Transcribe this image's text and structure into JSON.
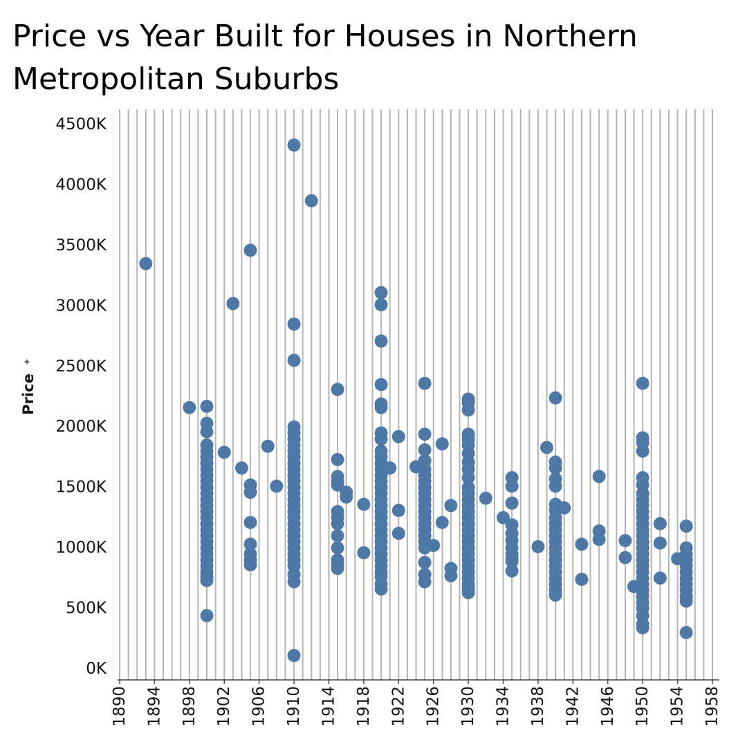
{
  "chart_data": {
    "type": "scatter",
    "title": "Price vs Year Built for Houses in Northern Metropolitan Suburbs",
    "xlabel": "",
    "ylabel": "Price",
    "xlim": [
      1890,
      1958
    ],
    "ylim": [
      0,
      4500000
    ],
    "x_ticks": [
      "1890",
      "1894",
      "1898",
      "1902",
      "1906",
      "1910",
      "1914",
      "1918",
      "1922",
      "1926",
      "1930",
      "1934",
      "1938",
      "1942",
      "1946",
      "1950",
      "1954",
      "1958"
    ],
    "y_ticks": [
      "0K",
      "500K",
      "1000K",
      "1500K",
      "2000K",
      "2500K",
      "3000K",
      "3500K",
      "4000K",
      "4500K"
    ],
    "grid": "vertical lines at each year",
    "point_color": "#4e79a7",
    "points": [
      [
        1893,
        3350000
      ],
      [
        1898,
        2160000
      ],
      [
        1900,
        2170000
      ],
      [
        1900,
        2030000
      ],
      [
        1900,
        1960000
      ],
      [
        1900,
        1850000
      ],
      [
        1900,
        1800000
      ],
      [
        1900,
        1750000
      ],
      [
        1900,
        1700000
      ],
      [
        1900,
        1650000
      ],
      [
        1900,
        1600000
      ],
      [
        1900,
        1550000
      ],
      [
        1900,
        1500000
      ],
      [
        1900,
        1450000
      ],
      [
        1900,
        1400000
      ],
      [
        1900,
        1350000
      ],
      [
        1900,
        1300000
      ],
      [
        1900,
        1250000
      ],
      [
        1900,
        1200000
      ],
      [
        1900,
        1150000
      ],
      [
        1900,
        1100000
      ],
      [
        1900,
        1050000
      ],
      [
        1900,
        1000000
      ],
      [
        1900,
        950000
      ],
      [
        1900,
        900000
      ],
      [
        1900,
        850000
      ],
      [
        1900,
        800000
      ],
      [
        1900,
        760000
      ],
      [
        1900,
        730000
      ],
      [
        1900,
        440000
      ],
      [
        1902,
        1790000
      ],
      [
        1903,
        3020000
      ],
      [
        1904,
        1660000
      ],
      [
        1905,
        3460000
      ],
      [
        1905,
        1520000
      ],
      [
        1905,
        1460000
      ],
      [
        1905,
        1210000
      ],
      [
        1905,
        1030000
      ],
      [
        1905,
        950000
      ],
      [
        1905,
        900000
      ],
      [
        1905,
        860000
      ],
      [
        1907,
        1840000
      ],
      [
        1908,
        1510000
      ],
      [
        1910,
        4330000
      ],
      [
        1910,
        2850000
      ],
      [
        1910,
        2550000
      ],
      [
        1910,
        2000000
      ],
      [
        1910,
        1950000
      ],
      [
        1910,
        1900000
      ],
      [
        1910,
        1850000
      ],
      [
        1910,
        1800000
      ],
      [
        1910,
        1750000
      ],
      [
        1910,
        1700000
      ],
      [
        1910,
        1650000
      ],
      [
        1910,
        1600000
      ],
      [
        1910,
        1550000
      ],
      [
        1910,
        1500000
      ],
      [
        1910,
        1450000
      ],
      [
        1910,
        1400000
      ],
      [
        1910,
        1350000
      ],
      [
        1910,
        1300000
      ],
      [
        1910,
        1250000
      ],
      [
        1910,
        1200000
      ],
      [
        1910,
        1150000
      ],
      [
        1910,
        1100000
      ],
      [
        1910,
        1050000
      ],
      [
        1910,
        1000000
      ],
      [
        1910,
        950000
      ],
      [
        1910,
        900000
      ],
      [
        1910,
        850000
      ],
      [
        1910,
        780000
      ],
      [
        1910,
        720000
      ],
      [
        1910,
        110000
      ],
      [
        1912,
        3870000
      ],
      [
        1915,
        2310000
      ],
      [
        1915,
        1730000
      ],
      [
        1915,
        1590000
      ],
      [
        1915,
        1550000
      ],
      [
        1915,
        1520000
      ],
      [
        1915,
        1300000
      ],
      [
        1915,
        1250000
      ],
      [
        1915,
        1200000
      ],
      [
        1915,
        1100000
      ],
      [
        1915,
        1000000
      ],
      [
        1915,
        900000
      ],
      [
        1915,
        870000
      ],
      [
        1915,
        830000
      ],
      [
        1916,
        1460000
      ],
      [
        1916,
        1420000
      ],
      [
        1918,
        1360000
      ],
      [
        1918,
        960000
      ],
      [
        1920,
        3110000
      ],
      [
        1920,
        3010000
      ],
      [
        1920,
        2710000
      ],
      [
        1920,
        2350000
      ],
      [
        1920,
        2190000
      ],
      [
        1920,
        2160000
      ],
      [
        1920,
        1950000
      ],
      [
        1920,
        1900000
      ],
      [
        1920,
        1800000
      ],
      [
        1920,
        1750000
      ],
      [
        1920,
        1700000
      ],
      [
        1920,
        1650000
      ],
      [
        1920,
        1600000
      ],
      [
        1920,
        1550000
      ],
      [
        1920,
        1500000
      ],
      [
        1920,
        1450000
      ],
      [
        1920,
        1400000
      ],
      [
        1920,
        1350000
      ],
      [
        1920,
        1300000
      ],
      [
        1920,
        1250000
      ],
      [
        1920,
        1200000
      ],
      [
        1920,
        1150000
      ],
      [
        1920,
        1100000
      ],
      [
        1920,
        1050000
      ],
      [
        1920,
        1000000
      ],
      [
        1920,
        950000
      ],
      [
        1920,
        900000
      ],
      [
        1920,
        850000
      ],
      [
        1920,
        800000
      ],
      [
        1920,
        760000
      ],
      [
        1920,
        700000
      ],
      [
        1920,
        660000
      ],
      [
        1921,
        1660000
      ],
      [
        1922,
        1920000
      ],
      [
        1922,
        1310000
      ],
      [
        1922,
        1120000
      ],
      [
        1924,
        1670000
      ],
      [
        1925,
        2360000
      ],
      [
        1925,
        1940000
      ],
      [
        1925,
        1810000
      ],
      [
        1925,
        1720000
      ],
      [
        1925,
        1650000
      ],
      [
        1925,
        1600000
      ],
      [
        1925,
        1550000
      ],
      [
        1925,
        1500000
      ],
      [
        1925,
        1450000
      ],
      [
        1925,
        1400000
      ],
      [
        1925,
        1350000
      ],
      [
        1925,
        1300000
      ],
      [
        1925,
        1250000
      ],
      [
        1925,
        1200000
      ],
      [
        1925,
        1150000
      ],
      [
        1925,
        1100000
      ],
      [
        1925,
        1050000
      ],
      [
        1925,
        1000000
      ],
      [
        1925,
        880000
      ],
      [
        1925,
        780000
      ],
      [
        1925,
        720000
      ],
      [
        1926,
        1020000
      ],
      [
        1927,
        1860000
      ],
      [
        1927,
        1210000
      ],
      [
        1928,
        1350000
      ],
      [
        1928,
        830000
      ],
      [
        1928,
        770000
      ],
      [
        1930,
        2230000
      ],
      [
        1930,
        2200000
      ],
      [
        1930,
        2140000
      ],
      [
        1930,
        1940000
      ],
      [
        1930,
        1900000
      ],
      [
        1930,
        1850000
      ],
      [
        1930,
        1780000
      ],
      [
        1930,
        1710000
      ],
      [
        1930,
        1650000
      ],
      [
        1930,
        1580000
      ],
      [
        1930,
        1500000
      ],
      [
        1930,
        1450000
      ],
      [
        1930,
        1400000
      ],
      [
        1930,
        1350000
      ],
      [
        1930,
        1300000
      ],
      [
        1930,
        1250000
      ],
      [
        1930,
        1200000
      ],
      [
        1930,
        1150000
      ],
      [
        1930,
        1100000
      ],
      [
        1930,
        1050000
      ],
      [
        1930,
        1000000
      ],
      [
        1930,
        950000
      ],
      [
        1930,
        900000
      ],
      [
        1930,
        850000
      ],
      [
        1930,
        800000
      ],
      [
        1930,
        750000
      ],
      [
        1930,
        700000
      ],
      [
        1930,
        660000
      ],
      [
        1930,
        630000
      ],
      [
        1932,
        1410000
      ],
      [
        1934,
        1250000
      ],
      [
        1935,
        1580000
      ],
      [
        1935,
        1510000
      ],
      [
        1935,
        1370000
      ],
      [
        1935,
        1190000
      ],
      [
        1935,
        1120000
      ],
      [
        1935,
        1060000
      ],
      [
        1935,
        1000000
      ],
      [
        1935,
        950000
      ],
      [
        1935,
        910000
      ],
      [
        1935,
        890000
      ],
      [
        1935,
        810000
      ],
      [
        1938,
        1010000
      ],
      [
        1939,
        1830000
      ],
      [
        1940,
        2240000
      ],
      [
        1940,
        1710000
      ],
      [
        1940,
        1660000
      ],
      [
        1940,
        1570000
      ],
      [
        1940,
        1510000
      ],
      [
        1940,
        1360000
      ],
      [
        1940,
        1310000
      ],
      [
        1940,
        1250000
      ],
      [
        1940,
        1200000
      ],
      [
        1940,
        1150000
      ],
      [
        1940,
        1100000
      ],
      [
        1940,
        1050000
      ],
      [
        1940,
        1000000
      ],
      [
        1940,
        950000
      ],
      [
        1940,
        900000
      ],
      [
        1940,
        850000
      ],
      [
        1940,
        800000
      ],
      [
        1940,
        750000
      ],
      [
        1940,
        700000
      ],
      [
        1940,
        650000
      ],
      [
        1940,
        610000
      ],
      [
        1941,
        1330000
      ],
      [
        1943,
        1030000
      ],
      [
        1943,
        740000
      ],
      [
        1945,
        1590000
      ],
      [
        1945,
        1140000
      ],
      [
        1945,
        1070000
      ],
      [
        1948,
        1060000
      ],
      [
        1948,
        920000
      ],
      [
        1949,
        680000
      ],
      [
        1950,
        2360000
      ],
      [
        1950,
        1910000
      ],
      [
        1950,
        1870000
      ],
      [
        1950,
        1800000
      ],
      [
        1950,
        1580000
      ],
      [
        1950,
        1520000
      ],
      [
        1950,
        1450000
      ],
      [
        1950,
        1400000
      ],
      [
        1950,
        1350000
      ],
      [
        1950,
        1300000
      ],
      [
        1950,
        1250000
      ],
      [
        1950,
        1200000
      ],
      [
        1950,
        1150000
      ],
      [
        1950,
        1100000
      ],
      [
        1950,
        1050000
      ],
      [
        1950,
        1000000
      ],
      [
        1950,
        950000
      ],
      [
        1950,
        900000
      ],
      [
        1950,
        850000
      ],
      [
        1950,
        800000
      ],
      [
        1950,
        750000
      ],
      [
        1950,
        700000
      ],
      [
        1950,
        650000
      ],
      [
        1950,
        600000
      ],
      [
        1950,
        550000
      ],
      [
        1950,
        500000
      ],
      [
        1950,
        440000
      ],
      [
        1950,
        370000
      ],
      [
        1950,
        340000
      ],
      [
        1952,
        1200000
      ],
      [
        1952,
        1040000
      ],
      [
        1952,
        750000
      ],
      [
        1954,
        910000
      ],
      [
        1955,
        1180000
      ],
      [
        1955,
        1000000
      ],
      [
        1955,
        950000
      ],
      [
        1955,
        900000
      ],
      [
        1955,
        850000
      ],
      [
        1955,
        800000
      ],
      [
        1955,
        750000
      ],
      [
        1955,
        700000
      ],
      [
        1955,
        650000
      ],
      [
        1955,
        600000
      ],
      [
        1955,
        560000
      ],
      [
        1955,
        300000
      ]
    ]
  }
}
